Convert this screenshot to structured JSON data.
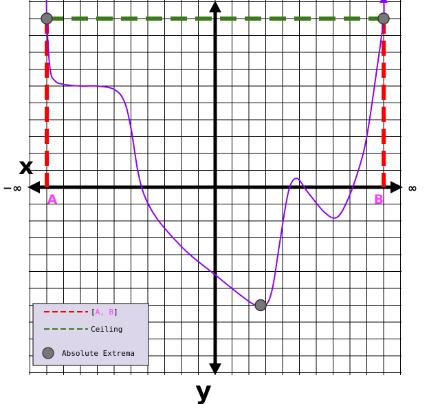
{
  "chart_data": {
    "type": "line",
    "title": "",
    "xlabel": "x",
    "ylabel": "y",
    "x_left_label": "−∞",
    "x_right_label": "∞",
    "xlim": [
      -11,
      11
    ],
    "ylim": [
      -11,
      11
    ],
    "grid": true,
    "curve": {
      "color": "#8b00ff",
      "points": [
        [
          -10.0,
          11.9
        ],
        [
          -10.0,
          10.0
        ],
        [
          -9.8,
          7.0
        ],
        [
          -9.5,
          6.3
        ],
        [
          -9.0,
          6.1
        ],
        [
          -8.0,
          6.0
        ],
        [
          -7.0,
          6.0
        ],
        [
          -6.0,
          5.8
        ],
        [
          -5.4,
          5.1
        ],
        [
          -5.0,
          3.5
        ],
        [
          -4.6,
          1.0
        ],
        [
          -4.2,
          -0.5
        ],
        [
          -3.5,
          -1.8
        ],
        [
          -2.5,
          -3.0
        ],
        [
          -1.5,
          -4.0
        ],
        [
          0.0,
          -5.2
        ],
        [
          1.5,
          -6.4
        ],
        [
          2.4,
          -7.0
        ],
        [
          3.0,
          -7.0
        ],
        [
          3.4,
          -6.0
        ],
        [
          3.8,
          -3.5
        ],
        [
          4.2,
          -1.0
        ],
        [
          4.5,
          0.2
        ],
        [
          4.9,
          0.5
        ],
        [
          5.5,
          -0.3
        ],
        [
          6.5,
          -1.5
        ],
        [
          7.2,
          -1.8
        ],
        [
          7.8,
          -0.9
        ],
        [
          8.5,
          1.0
        ],
        [
          9.0,
          3.0
        ],
        [
          9.6,
          7.0
        ],
        [
          10.0,
          10.0
        ],
        [
          10.0,
          11.3
        ]
      ]
    },
    "interval": {
      "label_a": "A",
      "label_b": "B",
      "x_a": -10.0,
      "x_b": 10.0,
      "color": "#ff0000"
    },
    "ceiling": {
      "y": 10.0,
      "color": "#3a7a1a"
    },
    "extrema": [
      {
        "x": -10.0,
        "y": 10.0
      },
      {
        "x": 10.0,
        "y": 10.0
      },
      {
        "x": 2.7,
        "y": -7.0
      }
    ],
    "legend": {
      "placement": "bottom-left",
      "background": "#dcd6ea",
      "entries": [
        {
          "label_parts": [
            {
              "text": "[",
              "color": "#000000"
            },
            {
              "text": "A, B",
              "color": "#ff3bff"
            },
            {
              "text": "]",
              "color": "#000000"
            }
          ],
          "kind": "dash",
          "color": "#ff0000"
        },
        {
          "label_parts": [
            {
              "text": "Ceiling",
              "color": "#000000"
            }
          ],
          "kind": "dash",
          "color": "#3a7a1a"
        },
        {
          "label_parts": [
            {
              "text": "Absolute Extrema",
              "color": "#000000"
            }
          ],
          "kind": "dot",
          "color": "#777777"
        }
      ]
    }
  }
}
